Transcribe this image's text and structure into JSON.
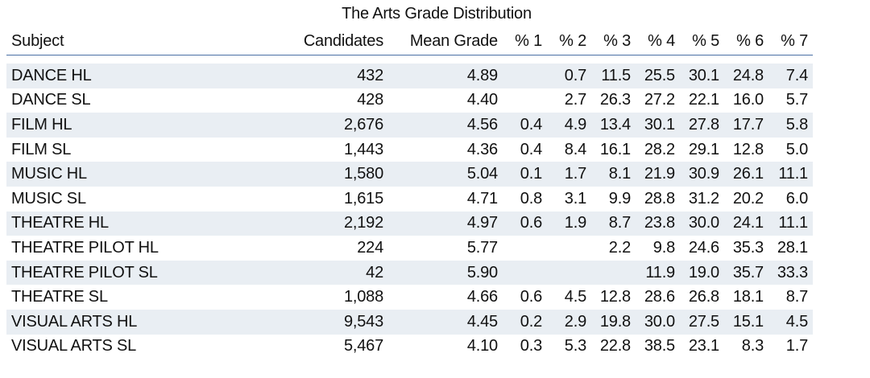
{
  "title": "The Arts Grade Distribution",
  "headers": [
    "Subject",
    "Candidates",
    "Mean Grade",
    "% 1",
    "% 2",
    "% 3",
    "% 4",
    "% 5",
    "% 6",
    "% 7"
  ],
  "rows": [
    {
      "subject": "DANCE HL",
      "candidates": "432",
      "mean": "4.89",
      "p1": "",
      "p2": "0.7",
      "p3": "11.5",
      "p4": "25.5",
      "p5": "30.1",
      "p6": "24.8",
      "p7": "7.4"
    },
    {
      "subject": "DANCE SL",
      "candidates": "428",
      "mean": "4.40",
      "p1": "",
      "p2": "2.7",
      "p3": "26.3",
      "p4": "27.2",
      "p5": "22.1",
      "p6": "16.0",
      "p7": "5.7"
    },
    {
      "subject": "FILM HL",
      "candidates": "2,676",
      "mean": "4.56",
      "p1": "0.4",
      "p2": "4.9",
      "p3": "13.4",
      "p4": "30.1",
      "p5": "27.8",
      "p6": "17.7",
      "p7": "5.8"
    },
    {
      "subject": "FILM SL",
      "candidates": "1,443",
      "mean": "4.36",
      "p1": "0.4",
      "p2": "8.4",
      "p3": "16.1",
      "p4": "28.2",
      "p5": "29.1",
      "p6": "12.8",
      "p7": "5.0"
    },
    {
      "subject": "MUSIC HL",
      "candidates": "1,580",
      "mean": "5.04",
      "p1": "0.1",
      "p2": "1.7",
      "p3": "8.1",
      "p4": "21.9",
      "p5": "30.9",
      "p6": "26.1",
      "p7": "11.1"
    },
    {
      "subject": "MUSIC SL",
      "candidates": "1,615",
      "mean": "4.71",
      "p1": "0.8",
      "p2": "3.1",
      "p3": "9.9",
      "p4": "28.8",
      "p5": "31.2",
      "p6": "20.2",
      "p7": "6.0"
    },
    {
      "subject": "THEATRE HL",
      "candidates": "2,192",
      "mean": "4.97",
      "p1": "0.6",
      "p2": "1.9",
      "p3": "8.7",
      "p4": "23.8",
      "p5": "30.0",
      "p6": "24.1",
      "p7": "11.1"
    },
    {
      "subject": "THEATRE PILOT HL",
      "candidates": "224",
      "mean": "5.77",
      "p1": "",
      "p2": "",
      "p3": "2.2",
      "p4": "9.8",
      "p5": "24.6",
      "p6": "35.3",
      "p7": "28.1"
    },
    {
      "subject": "THEATRE PILOT SL",
      "candidates": "42",
      "mean": "5.90",
      "p1": "",
      "p2": "",
      "p3": "",
      "p4": "11.9",
      "p5": "19.0",
      "p6": "35.7",
      "p7": "33.3"
    },
    {
      "subject": "THEATRE SL",
      "candidates": "1,088",
      "mean": "4.66",
      "p1": "0.6",
      "p2": "4.5",
      "p3": "12.8",
      "p4": "28.6",
      "p5": "26.8",
      "p6": "18.1",
      "p7": "8.7"
    },
    {
      "subject": "VISUAL ARTS HL",
      "candidates": "9,543",
      "mean": "4.45",
      "p1": "0.2",
      "p2": "2.9",
      "p3": "19.8",
      "p4": "30.0",
      "p5": "27.5",
      "p6": "15.1",
      "p7": "4.5"
    },
    {
      "subject": "VISUAL ARTS SL",
      "candidates": "5,467",
      "mean": "4.10",
      "p1": "0.3",
      "p2": "5.3",
      "p3": "22.8",
      "p4": "38.5",
      "p5": "23.1",
      "p6": "8.3",
      "p7": "1.7"
    }
  ]
}
